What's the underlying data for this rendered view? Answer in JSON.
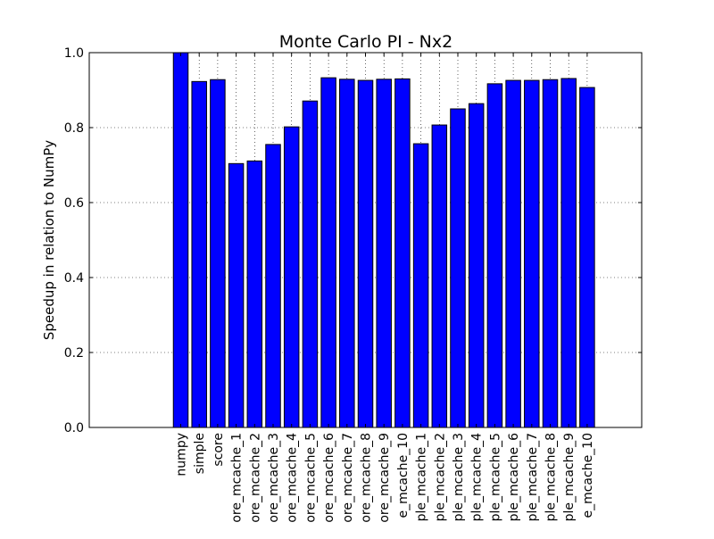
{
  "chart_data": {
    "type": "bar",
    "title": "Monte Carlo PI - Nx2",
    "xlabel": "",
    "ylabel": "Speedup in relation to NumPy",
    "ylim": [
      0,
      1.0
    ],
    "yticks": [
      "0.0",
      "0.2",
      "0.4",
      "0.6",
      "0.8",
      "1.0"
    ],
    "ytick_values": [
      0,
      0.2,
      0.4,
      0.6,
      0.8,
      1.0
    ],
    "grid": true,
    "bar_color": "#0000ff",
    "categories": [
      "numpy",
      "simple",
      "score",
      "ore_mcache_1",
      "ore_mcache_2",
      "ore_mcache_3",
      "ore_mcache_4",
      "ore_mcache_5",
      "ore_mcache_6",
      "ore_mcache_7",
      "ore_mcache_8",
      "ore_mcache_9",
      "e_mcache_10",
      "ple_mcache_1",
      "ple_mcache_2",
      "ple_mcache_3",
      "ple_mcache_4",
      "ple_mcache_5",
      "ple_mcache_6",
      "ple_mcache_7",
      "ple_mcache_8",
      "ple_mcache_9",
      "e_mcache_10"
    ],
    "values": [
      1.0,
      0.923,
      0.928,
      0.704,
      0.711,
      0.755,
      0.802,
      0.871,
      0.933,
      0.929,
      0.926,
      0.929,
      0.93,
      0.757,
      0.807,
      0.85,
      0.864,
      0.917,
      0.926,
      0.926,
      0.928,
      0.931,
      0.907
    ]
  }
}
